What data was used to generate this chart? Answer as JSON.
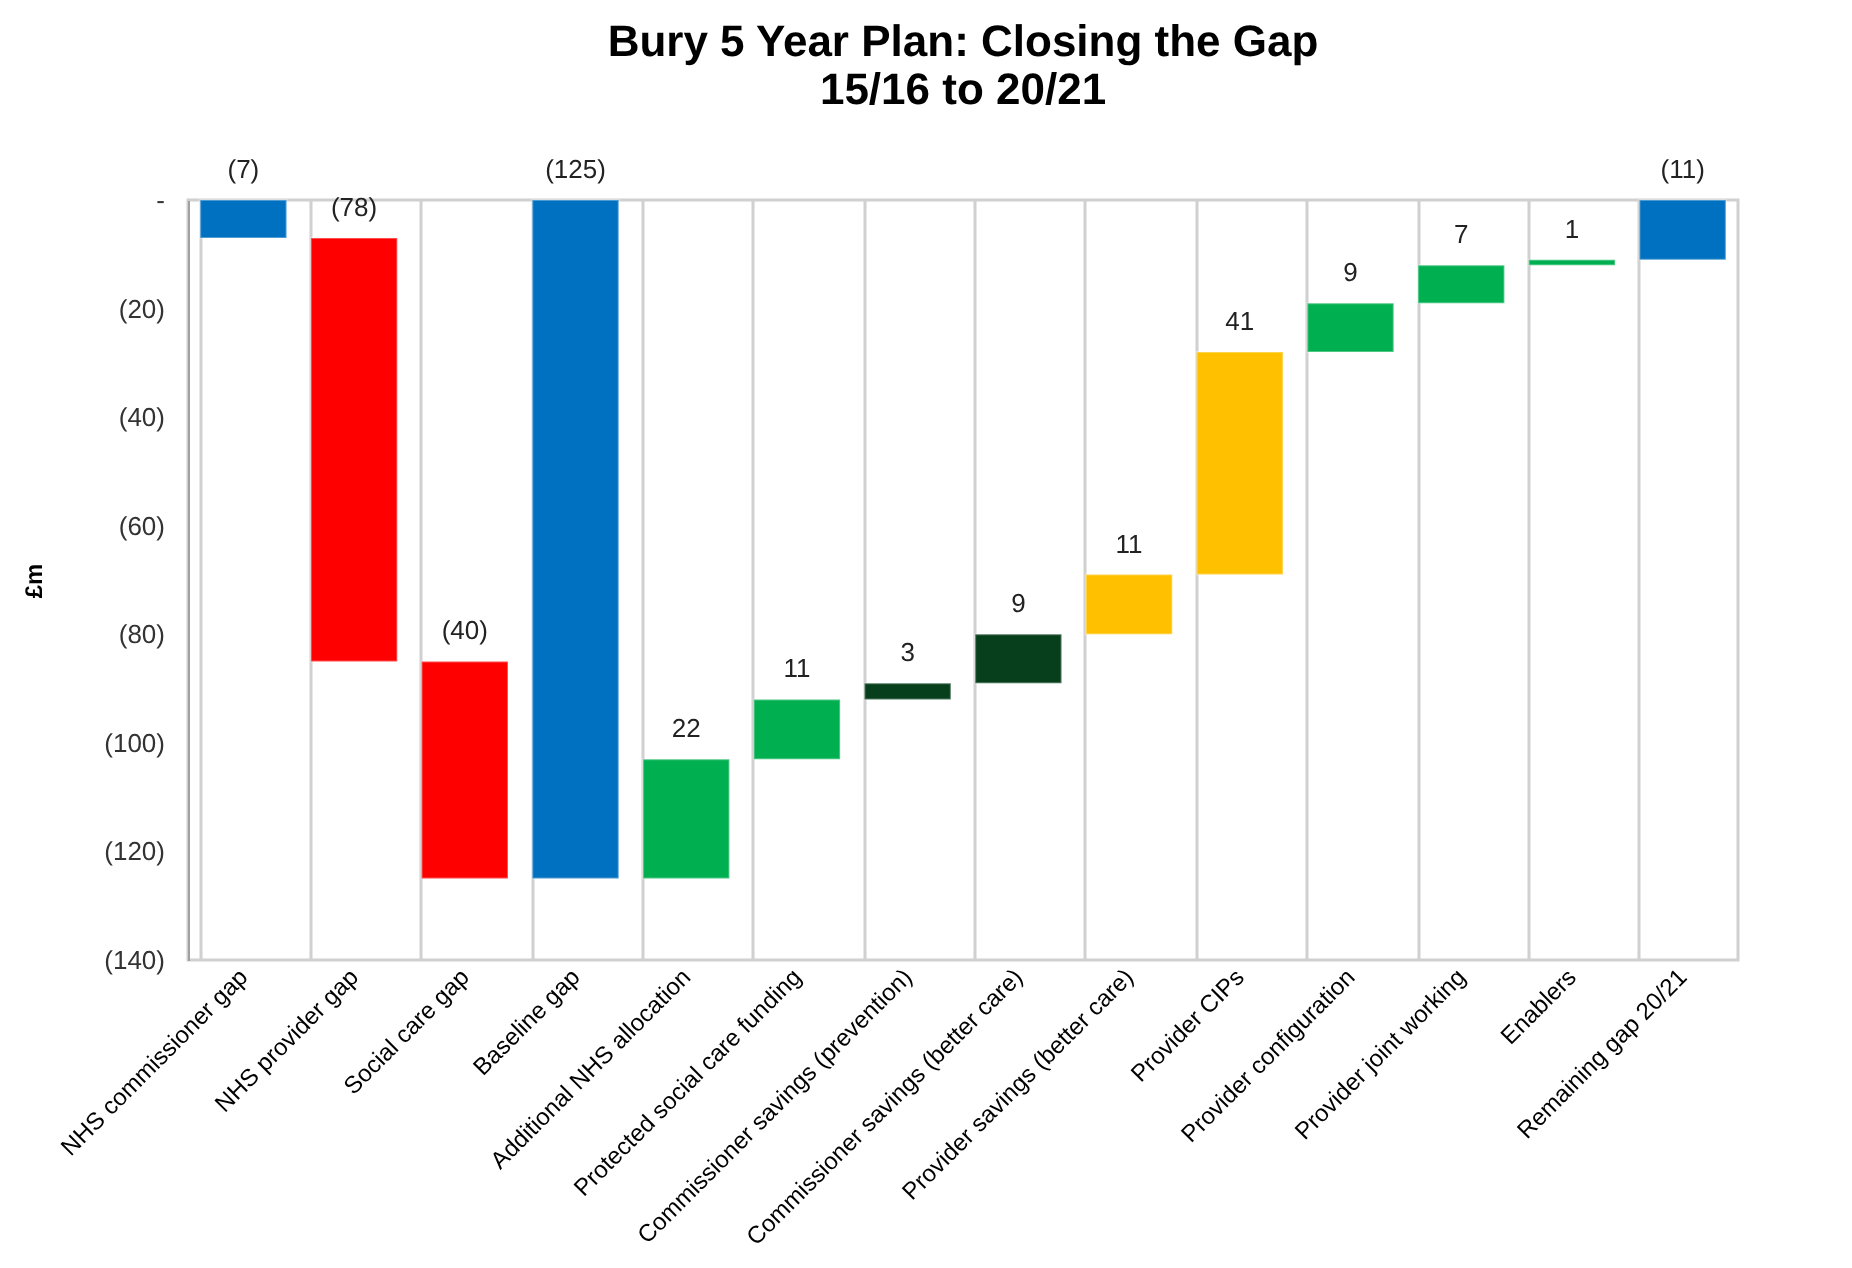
{
  "chart_data": {
    "type": "bar",
    "title": "Bury 5 Year Plan: Closing the Gap",
    "subtitle": "15/16 to 20/21",
    "ylabel": "£m",
    "categories": [
      "NHS commissioner gap",
      "NHS provider gap",
      "Social care gap",
      "Baseline gap",
      "Additional NHS allocation",
      "Protected social care funding",
      "Commissioner savings (prevention)",
      "Commissioner savings (better care)",
      "Provider savings (better care)",
      "Provider CIPs",
      "Provider configuration",
      "Provider joint working",
      "Enablers",
      "Remaining gap 20/21"
    ],
    "values": [
      -7,
      -78,
      -40,
      -125,
      22,
      11,
      3,
      9,
      11,
      41,
      9,
      7,
      1,
      -11
    ],
    "base": [
      0,
      -7,
      -85,
      0,
      -125,
      -103,
      -92,
      -89,
      -80,
      -69,
      -28,
      -19,
      -12,
      0
    ],
    "colors": [
      "#0070c0",
      "#ff0000",
      "#ff0000",
      "#0070c0",
      "#00b050",
      "#00b050",
      "#073f1c",
      "#073f1c",
      "#ffc000",
      "#ffc000",
      "#00b050",
      "#00b050",
      "#00b050",
      "#0070c0"
    ],
    "value_labels": [
      "(7)",
      "(78)",
      "(40)",
      "(125)",
      "22",
      "11",
      "3",
      "9",
      "11",
      "41",
      "9",
      "7",
      "1",
      "(11)"
    ],
    "ylim": [
      -140,
      0
    ],
    "yticks": [
      {
        "value": 0,
        "label": "-"
      },
      {
        "value": -20,
        "label": "(20)"
      },
      {
        "value": -40,
        "label": "(40)"
      },
      {
        "value": -60,
        "label": "(60)"
      },
      {
        "value": -80,
        "label": "(80)"
      },
      {
        "value": -100,
        "label": "(100)"
      },
      {
        "value": -120,
        "label": "(120)"
      },
      {
        "value": -140,
        "label": "(140)"
      }
    ],
    "grid": "x"
  }
}
